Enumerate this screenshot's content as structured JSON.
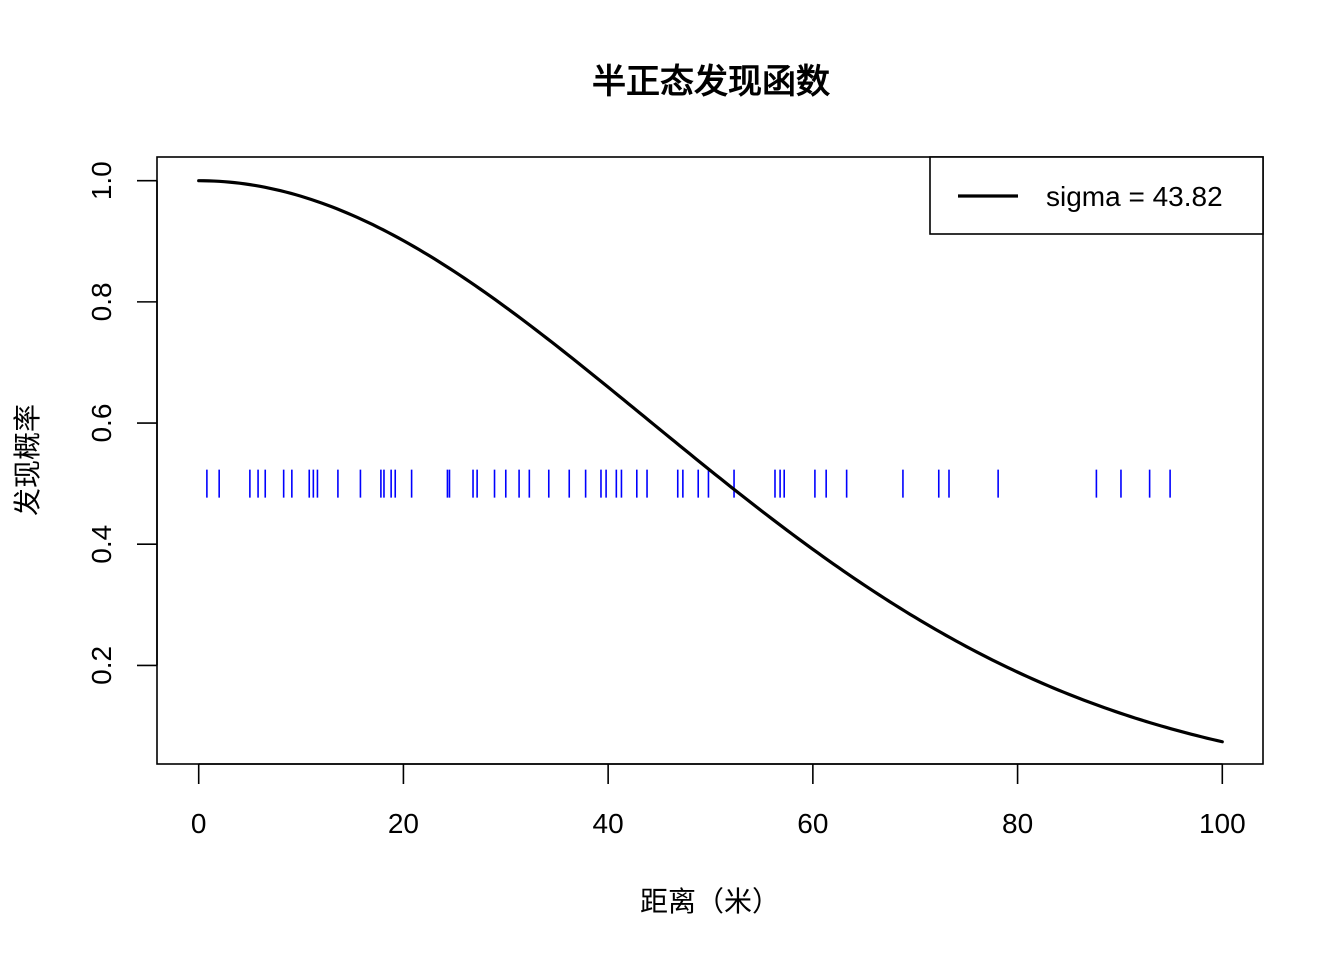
{
  "chart_data": {
    "type": "line",
    "title": "半正态发现函数",
    "xlabel": "距离（米）",
    "ylabel": "发现概率",
    "xlim": [
      0,
      100
    ],
    "ylim": [
      0.07,
      1.0
    ],
    "x_ticks": [
      0,
      20,
      40,
      60,
      80,
      100
    ],
    "y_ticks": [
      0.2,
      0.4,
      0.6,
      0.8,
      1.0
    ],
    "x_tick_labels": [
      "0",
      "20",
      "40",
      "60",
      "80",
      "100"
    ],
    "y_tick_labels": [
      "0.2",
      "0.4",
      "0.6",
      "0.8",
      "1.0"
    ],
    "grid": false,
    "legend": {
      "placement": "top-right",
      "entries": [
        "sigma = 43.82"
      ]
    },
    "series": [
      {
        "name": "sigma = 43.82",
        "color": "#000000",
        "function": "half-normal",
        "sigma": 43.82,
        "x": [
          0,
          5,
          10,
          15,
          20,
          25,
          30,
          35,
          40,
          45,
          50,
          55,
          60,
          65,
          70,
          75,
          80,
          85,
          90,
          95,
          100
        ],
        "y": [
          1.0,
          0.993,
          0.974,
          0.943,
          0.901,
          0.85,
          0.791,
          0.727,
          0.659,
          0.59,
          0.522,
          0.455,
          0.392,
          0.333,
          0.279,
          0.231,
          0.189,
          0.152,
          0.121,
          0.095,
          0.074
        ]
      }
    ],
    "rug": {
      "color": "#0000ff",
      "y_level": 0.5,
      "values": [
        0.8,
        2.0,
        5.0,
        5.8,
        6.5,
        8.3,
        9.1,
        10.8,
        11.2,
        11.6,
        13.6,
        15.8,
        17.8,
        18.1,
        18.8,
        19.2,
        20.8,
        24.3,
        24.5,
        26.8,
        27.2,
        28.9,
        30.0,
        31.3,
        32.3,
        34.2,
        36.2,
        37.8,
        39.3,
        39.8,
        40.8,
        41.3,
        42.8,
        43.8,
        46.8,
        47.3,
        48.8,
        49.8,
        52.3,
        56.3,
        56.8,
        57.2,
        60.2,
        61.3,
        63.3,
        68.8,
        72.3,
        73.3,
        78.1,
        87.7,
        90.1,
        92.9,
        94.9
      ]
    }
  }
}
